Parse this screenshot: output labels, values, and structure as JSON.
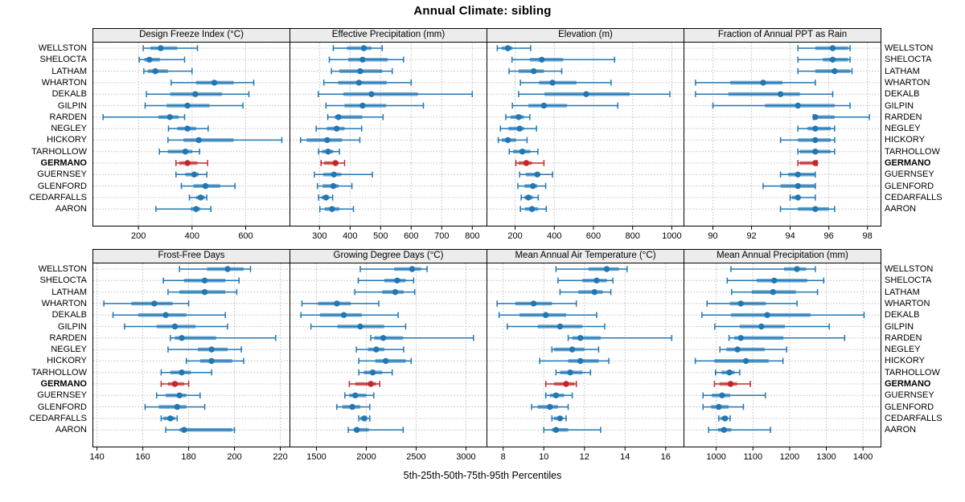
{
  "title": "Annual Climate: sibling",
  "caption": "5th-25th-50th-75th-95th Percentiles",
  "colors": {
    "series_blue": "#2077b4",
    "highlight_red": "#c2262b",
    "strip_bg": "#ececec",
    "grid": "#bdbdbd",
    "border": "#000000",
    "text": "#000000"
  },
  "chart_data": {
    "type": "scatter",
    "subtype": "percentile-interval-dotplot",
    "layout": "2x4 trellis, shared site axis, grid on (dotted)",
    "percentiles": [
      5,
      25,
      50,
      75,
      95
    ],
    "highlight_site": "GERMANO",
    "sites": [
      "WELLSTON",
      "SHELOCTA",
      "LATHAM",
      "WHARTON",
      "DEKALB",
      "GILPIN",
      "RARDEN",
      "NEGLEY",
      "HICKORY",
      "TARHOLLOW",
      "GERMANO",
      "GUERNSEY",
      "GLENFORD",
      "CEDARFALLS",
      "AARON"
    ],
    "panels": [
      {
        "label": "Design Freeze Index (°C)",
        "xlim": [
          30,
          765
        ],
        "ticks": [
          200,
          400,
          600
        ],
        "data": [
          [
            218,
            245,
            283,
            345,
            420
          ],
          [
            203,
            222,
            241,
            280,
            372
          ],
          [
            220,
            235,
            263,
            310,
            400
          ],
          [
            322,
            415,
            483,
            555,
            630
          ],
          [
            230,
            318,
            412,
            512,
            612
          ],
          [
            225,
            305,
            383,
            465,
            590
          ],
          [
            68,
            275,
            317,
            350,
            372
          ],
          [
            312,
            345,
            383,
            415,
            460
          ],
          [
            310,
            368,
            425,
            555,
            735
          ],
          [
            278,
            310,
            375,
            400,
            428
          ],
          [
            340,
            352,
            383,
            420,
            458
          ],
          [
            340,
            375,
            408,
            425,
            455
          ],
          [
            360,
            405,
            450,
            505,
            560
          ],
          [
            390,
            415,
            432,
            448,
            455
          ],
          [
            265,
            395,
            415,
            430,
            470
          ]
        ]
      },
      {
        "label": "Effective Precipitation (mm)",
        "xlim": [
          203,
          848
        ],
        "ticks": [
          300,
          400,
          500,
          600,
          700,
          800
        ],
        "data": [
          [
            345,
            390,
            445,
            470,
            505
          ],
          [
            332,
            394,
            441,
            523,
            575
          ],
          [
            339,
            365,
            433,
            505,
            538
          ],
          [
            314,
            361,
            429,
            520,
            600
          ],
          [
            296,
            378,
            470,
            622,
            800
          ],
          [
            321,
            382,
            441,
            518,
            640
          ],
          [
            327,
            350,
            362,
            440,
            508
          ],
          [
            289,
            324,
            356,
            382,
            438
          ],
          [
            238,
            258,
            325,
            374,
            432
          ],
          [
            297,
            308,
            328,
            345,
            365
          ],
          [
            305,
            315,
            352,
            362,
            382
          ],
          [
            283,
            312,
            347,
            371,
            473
          ],
          [
            293,
            310,
            345,
            362,
            406
          ],
          [
            297,
            306,
            321,
            332,
            343
          ],
          [
            301,
            317,
            341,
            365,
            411
          ]
        ]
      },
      {
        "label": "Elevation (m)",
        "xlim": [
          56,
          1062
        ],
        "ticks": [
          200,
          400,
          600,
          800,
          1000
        ],
        "data": [
          [
            109,
            132,
            163,
            186,
            279
          ],
          [
            184,
            275,
            336,
            445,
            708
          ],
          [
            169,
            218,
            295,
            347,
            438
          ],
          [
            227,
            322,
            391,
            513,
            690
          ],
          [
            218,
            350,
            563,
            785,
            990
          ],
          [
            186,
            268,
            347,
            465,
            724
          ],
          [
            152,
            177,
            218,
            245,
            275
          ],
          [
            125,
            166,
            223,
            245,
            309
          ],
          [
            114,
            132,
            163,
            204,
            261
          ],
          [
            170,
            190,
            237,
            278,
            316
          ],
          [
            204,
            218,
            257,
            286,
            347
          ],
          [
            223,
            254,
            313,
            329,
            391
          ],
          [
            214,
            248,
            291,
            313,
            356
          ],
          [
            231,
            248,
            268,
            291,
            318
          ],
          [
            227,
            250,
            286,
            318,
            359
          ]
        ]
      },
      {
        "label": "Fraction of Annual PPT as Rain",
        "xlim": [
          88.5,
          98.7
        ],
        "ticks": [
          90,
          92,
          94,
          96,
          98
        ],
        "data": [
          [
            94.4,
            95.3,
            96.2,
            97,
            97.1
          ],
          [
            94.4,
            95.7,
            96.2,
            97,
            97.1
          ],
          [
            94.4,
            95.3,
            96.3,
            97.1,
            97.2
          ],
          [
            89.1,
            90.9,
            92.6,
            93.6,
            95.3
          ],
          [
            89.1,
            90.8,
            93.5,
            94.5,
            96.2
          ],
          [
            90,
            92.7,
            94.4,
            96.3,
            97.1
          ],
          [
            95.2,
            95.3,
            95.3,
            96.3,
            98.1
          ],
          [
            94.4,
            94.9,
            95.3,
            96.1,
            96.3
          ],
          [
            93.5,
            94.4,
            95.3,
            96.1,
            96.3
          ],
          [
            94.4,
            94.5,
            95.3,
            96.1,
            96.3
          ],
          [
            94.4,
            94.5,
            95.3,
            95.3,
            95.4
          ],
          [
            93.5,
            93.9,
            94.4,
            95.3,
            95.3
          ],
          [
            92.6,
            93.5,
            94.4,
            95.3,
            95.3
          ],
          [
            94,
            94.1,
            94.4,
            94.5,
            95.3
          ],
          [
            93.5,
            94.4,
            95.3,
            96,
            96.3
          ]
        ]
      },
      {
        "label": "Frost-Free Days",
        "xlim": [
          138.2,
          224.2
        ],
        "ticks": [
          140,
          160,
          180,
          200,
          220
        ],
        "data": [
          [
            176,
            188,
            197,
            204,
            207
          ],
          [
            169,
            178,
            187,
            196,
            202
          ],
          [
            171,
            176,
            187,
            196,
            201
          ],
          [
            143,
            155,
            165,
            173,
            180
          ],
          [
            147,
            158,
            170,
            179,
            196
          ],
          [
            152,
            166,
            174,
            183,
            197
          ],
          [
            172,
            174,
            177,
            192,
            218
          ],
          [
            171,
            184,
            190,
            197,
            203
          ],
          [
            179,
            185,
            190,
            199,
            204
          ],
          [
            168,
            172,
            177,
            181,
            190
          ],
          [
            168,
            171,
            174,
            178,
            180
          ],
          [
            166,
            170,
            176,
            179,
            185
          ],
          [
            161,
            167,
            175,
            179,
            187
          ],
          [
            168,
            169,
            172,
            174,
            175
          ],
          [
            170,
            176,
            178,
            199,
            200
          ]
        ]
      },
      {
        "label": "Growing Degree Days (°C)",
        "xlim": [
          1234,
          3210
        ],
        "ticks": [
          1500,
          2000,
          2500,
          3000
        ],
        "data": [
          [
            1940,
            2280,
            2460,
            2550,
            2610
          ],
          [
            1920,
            2180,
            2310,
            2395,
            2475
          ],
          [
            1885,
            2160,
            2290,
            2375,
            2485
          ],
          [
            1355,
            1515,
            1705,
            1845,
            2125
          ],
          [
            1345,
            1535,
            1775,
            1955,
            2320
          ],
          [
            1445,
            1710,
            1940,
            2180,
            2395
          ],
          [
            2045,
            2080,
            2170,
            2370,
            3075
          ],
          [
            1900,
            2015,
            2100,
            2180,
            2375
          ],
          [
            1925,
            2090,
            2195,
            2395,
            2450
          ],
          [
            1925,
            1975,
            2065,
            2160,
            2260
          ],
          [
            1830,
            1890,
            2045,
            2100,
            2135
          ],
          [
            1785,
            1830,
            1890,
            2000,
            2075
          ],
          [
            1705,
            1760,
            1860,
            1940,
            2035
          ],
          [
            1925,
            1940,
            1980,
            2010,
            2035
          ],
          [
            1820,
            1875,
            1905,
            2025,
            2370
          ]
        ]
      },
      {
        "label": "Mean Annual Air Temperature (°C)",
        "xlim": [
          7.2,
          16.9
        ],
        "ticks": [
          8,
          10,
          12,
          14,
          16
        ],
        "data": [
          [
            10.6,
            12.2,
            13.1,
            13.7,
            14.1
          ],
          [
            10.7,
            11.9,
            12.6,
            13.1,
            13.4
          ],
          [
            10.8,
            11.7,
            12.5,
            12.9,
            13.3
          ],
          [
            7.7,
            8.6,
            9.5,
            10.4,
            11.6
          ],
          [
            7.8,
            8.8,
            10.1,
            11.1,
            12.6
          ],
          [
            8.2,
            9.7,
            10.8,
            11.9,
            13
          ],
          [
            11.2,
            11.4,
            11.8,
            12.8,
            16.3
          ],
          [
            10.4,
            10.5,
            11.4,
            12,
            12.7
          ],
          [
            9.8,
            11.2,
            11.8,
            12.7,
            13.2
          ],
          [
            10.6,
            10.8,
            11.3,
            11.9,
            12.3
          ],
          [
            10.1,
            10.5,
            11.1,
            11.5,
            11.6
          ],
          [
            10.1,
            10.3,
            10.6,
            11,
            11.4
          ],
          [
            9.4,
            9.7,
            10.3,
            10.7,
            11.2
          ],
          [
            10.4,
            10.5,
            10.8,
            10.9,
            11.1
          ],
          [
            10,
            10.4,
            10.6,
            11.2,
            12.8
          ]
        ]
      },
      {
        "label": "Mean Annual Precipitation (mm)",
        "xlim": [
          912,
          1449
        ],
        "ticks": [
          1000,
          1100,
          1200,
          1300,
          1400
        ],
        "data": [
          [
            1040,
            1185,
            1220,
            1245,
            1270
          ],
          [
            1030,
            1110,
            1158,
            1248,
            1293
          ],
          [
            1042,
            1097,
            1155,
            1217,
            1276
          ],
          [
            975,
            1037,
            1067,
            1135,
            1220
          ],
          [
            961,
            1040,
            1139,
            1257,
            1403
          ],
          [
            996,
            1064,
            1123,
            1187,
            1308
          ],
          [
            1035,
            1049,
            1067,
            1183,
            1350
          ],
          [
            1010,
            1028,
            1058,
            1132,
            1192
          ],
          [
            943,
            995,
            1081,
            1143,
            1182
          ],
          [
            998,
            1014,
            1036,
            1050,
            1064
          ],
          [
            995,
            1009,
            1039,
            1057,
            1093
          ],
          [
            964,
            988,
            1016,
            1038,
            1134
          ],
          [
            964,
            986,
            1007,
            1034,
            1074
          ],
          [
            1007,
            1012,
            1024,
            1031,
            1038
          ],
          [
            979,
            1005,
            1021,
            1041,
            1148
          ]
        ]
      }
    ]
  }
}
